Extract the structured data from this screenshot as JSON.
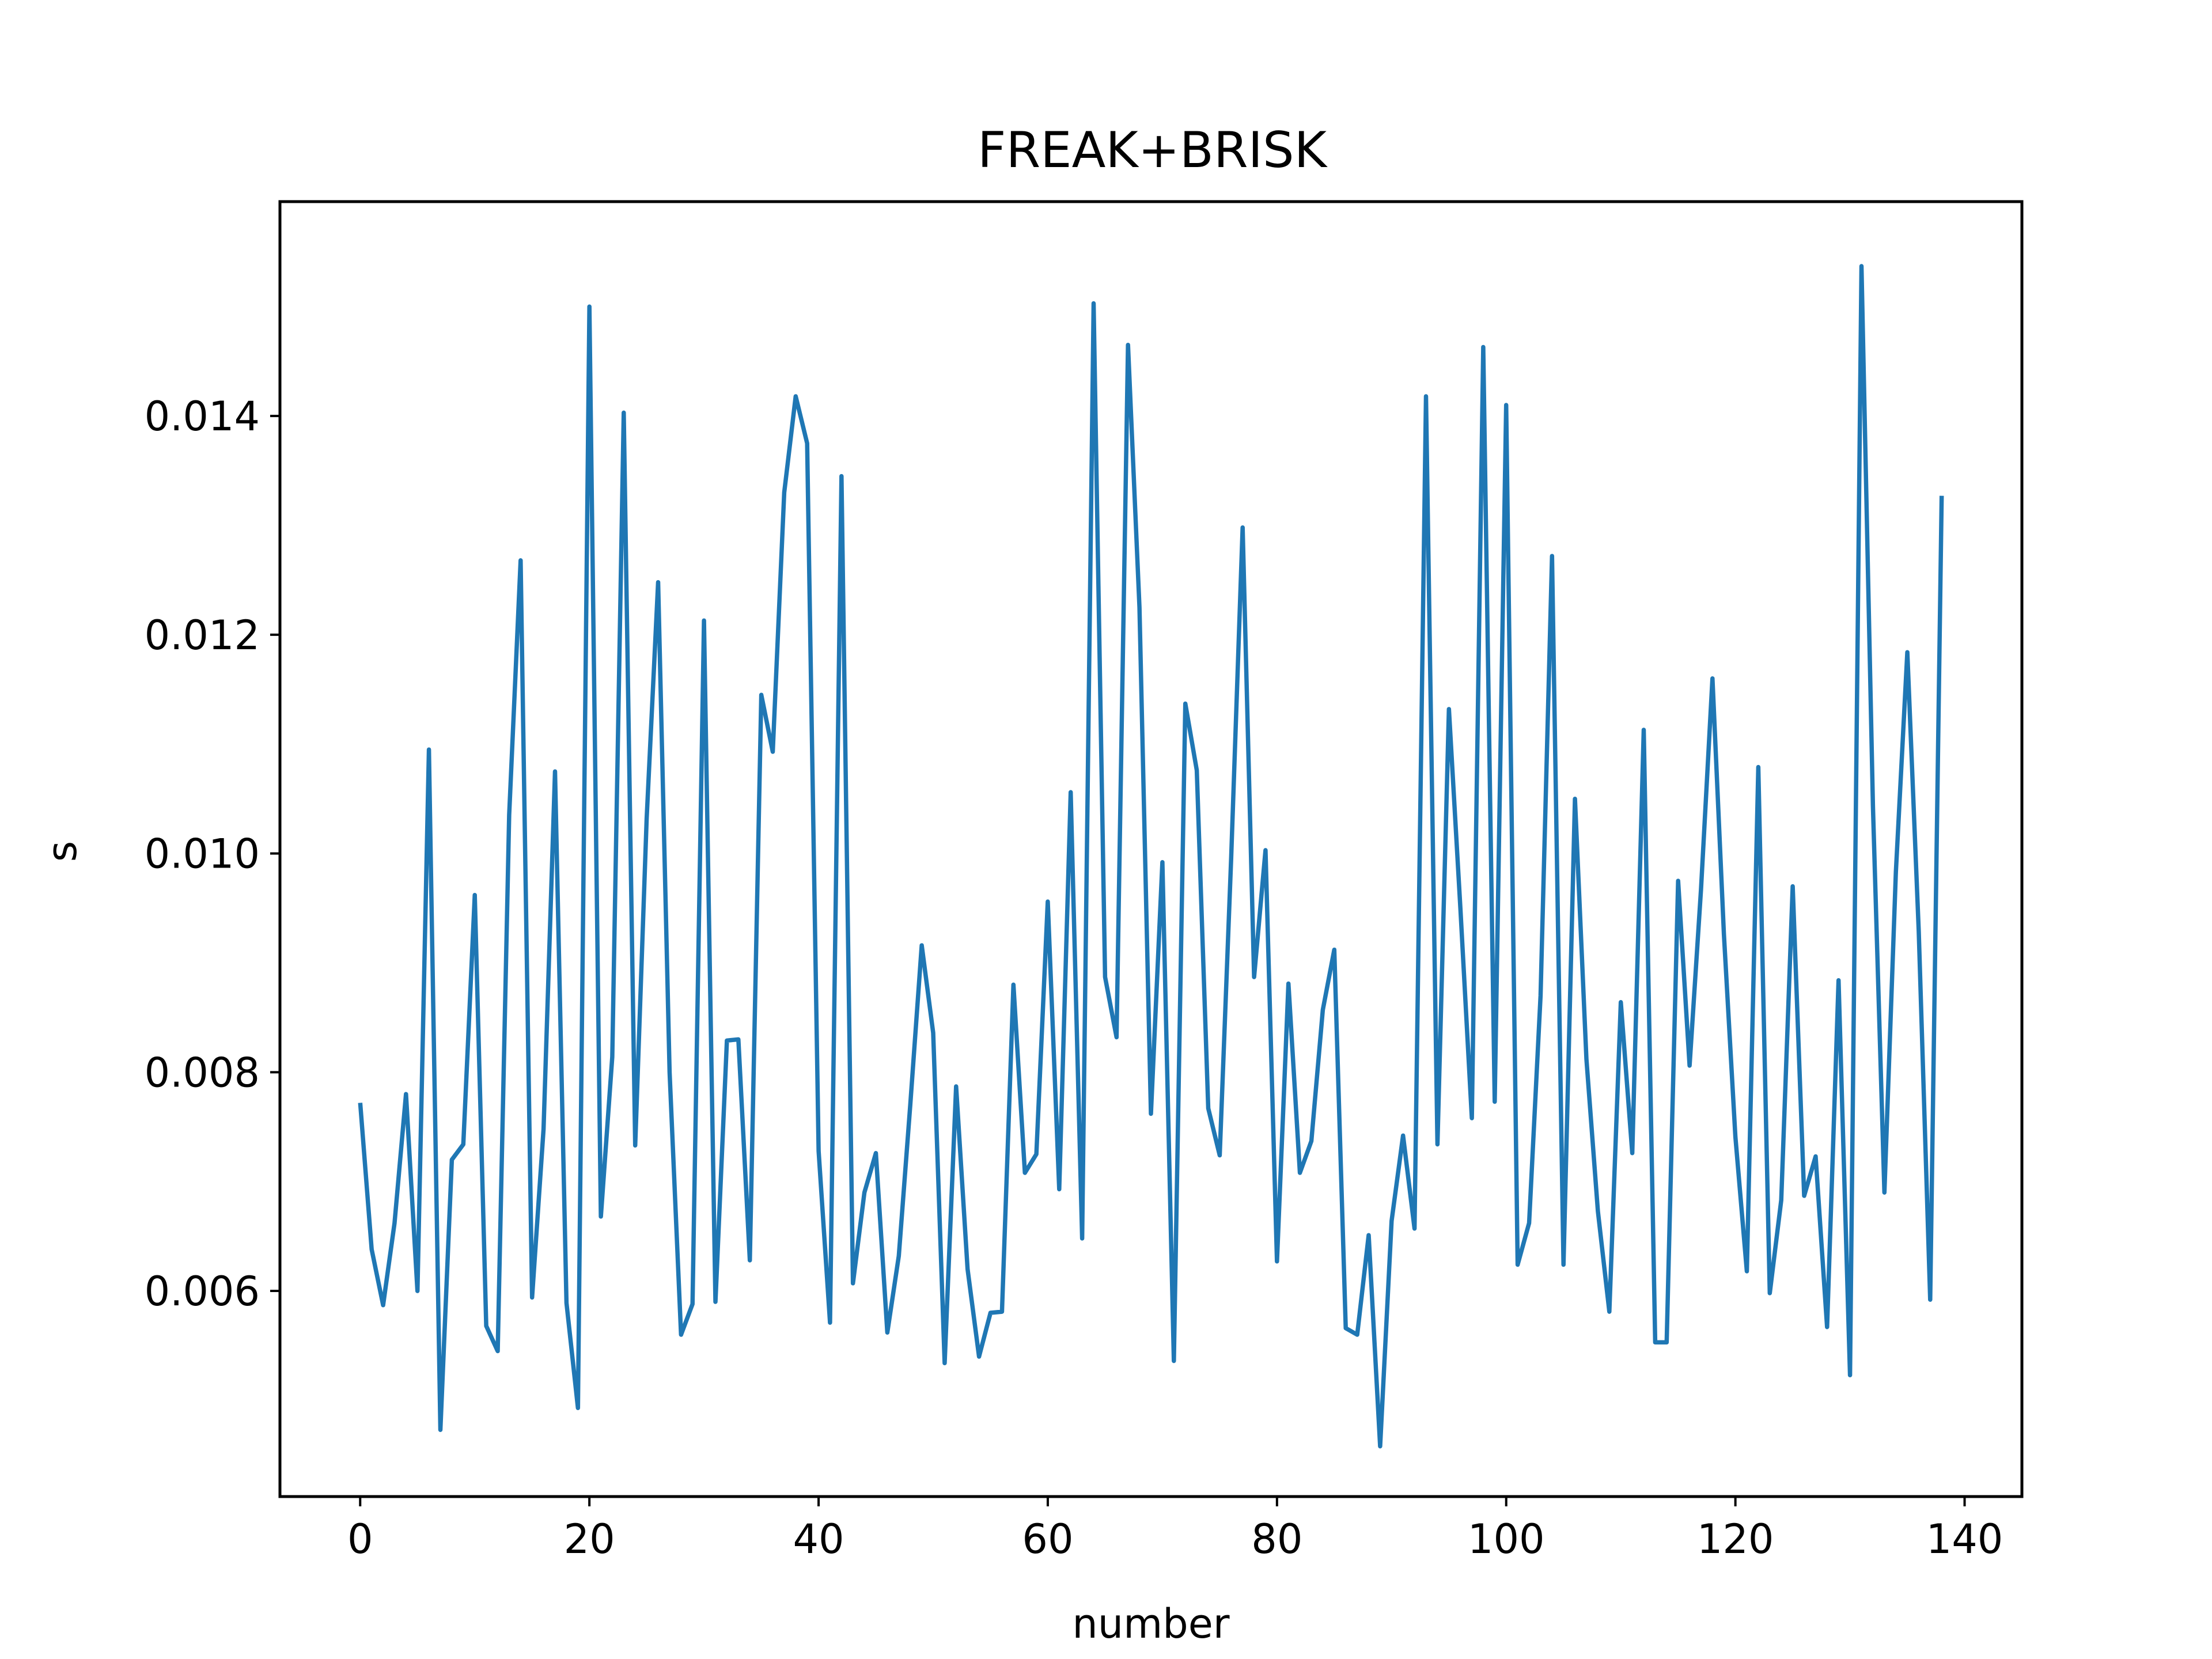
{
  "chart_data": {
    "type": "line",
    "title": "FREAK+BRISK",
    "xlabel": "number",
    "ylabel": "s",
    "xlim": [
      -7,
      145
    ],
    "ylim": [
      0.00412,
      0.01596
    ],
    "xticks": [
      0,
      20,
      40,
      60,
      80,
      100,
      120,
      140
    ],
    "xtick_labels": [
      "0",
      "20",
      "40",
      "60",
      "80",
      "100",
      "120",
      "140"
    ],
    "yticks": [
      0.006,
      0.008,
      0.01,
      0.012,
      0.014
    ],
    "ytick_labels": [
      "0.006",
      "0.008",
      "0.010",
      "0.012",
      "0.014"
    ],
    "grid": false,
    "legend": "none",
    "series": [
      {
        "color": "#1f77b4",
        "x_start": 0,
        "x_step": 1,
        "values": [
          0.00772,
          0.00638,
          0.00587,
          0.00662,
          0.0078,
          0.006,
          0.01095,
          0.00473,
          0.0072,
          0.00734,
          0.00962,
          0.00568,
          0.00545,
          0.01035,
          0.01268,
          0.00594,
          0.00748,
          0.01075,
          0.00589,
          0.00493,
          0.015,
          0.00668,
          0.00814,
          0.01403,
          0.00733,
          0.01032,
          0.01248,
          0.008,
          0.0056,
          0.00588,
          0.01213,
          0.0059,
          0.00829,
          0.0083,
          0.00628,
          0.01145,
          0.01093,
          0.0133,
          0.01418,
          0.01375,
          0.00728,
          0.00571,
          0.01345,
          0.00607,
          0.0069,
          0.00726,
          0.00562,
          0.00632,
          0.0077,
          0.00916,
          0.00836,
          0.00534,
          0.00787,
          0.0062,
          0.0054,
          0.0058,
          0.00581,
          0.0088,
          0.00708,
          0.00725,
          0.00956,
          0.00693,
          0.01056,
          0.00648,
          0.01503,
          0.00887,
          0.00832,
          0.01465,
          0.01225,
          0.00762,
          0.00992,
          0.00536,
          0.01137,
          0.01076,
          0.00767,
          0.00724,
          0.00996,
          0.01298,
          0.00887,
          0.01003,
          0.00627,
          0.00881,
          0.00708,
          0.00737,
          0.00857,
          0.00912,
          0.00566,
          0.0056,
          0.00651,
          0.00458,
          0.00664,
          0.00742,
          0.00657,
          0.01418,
          0.00734,
          0.01132,
          0.0095,
          0.00758,
          0.01463,
          0.00773,
          0.0141,
          0.00624,
          0.00662,
          0.0087,
          0.01272,
          0.00624,
          0.0105,
          0.00812,
          0.00673,
          0.00581,
          0.00864,
          0.00726,
          0.01113,
          0.00553,
          0.00553,
          0.00975,
          0.00806,
          0.00967,
          0.0116,
          0.00926,
          0.00741,
          0.00618,
          0.01079,
          0.00598,
          0.00683,
          0.0097,
          0.00687,
          0.00723,
          0.00567,
          0.00884,
          0.00523,
          0.01537,
          0.01043,
          0.0069,
          0.00983,
          0.01184,
          0.00929,
          0.00592,
          0.01327
        ]
      }
    ]
  }
}
